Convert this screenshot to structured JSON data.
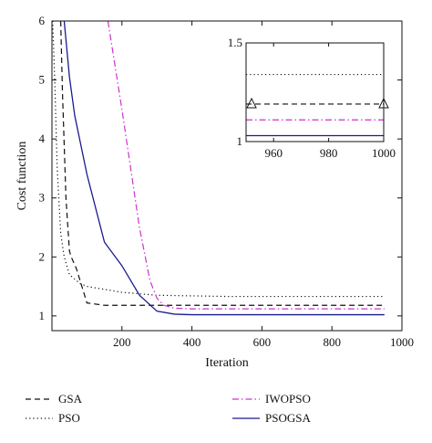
{
  "chart_data": [
    {
      "type": "line",
      "xlabel": "Iteration",
      "ylabel": "Cost function",
      "xlim": [
        0,
        1000
      ],
      "ylim": [
        0.75,
        6
      ],
      "xticks": [
        "200",
        "400",
        "600",
        "800",
        "1000"
      ],
      "yticks": [
        "1",
        "2",
        "3",
        "4",
        "5",
        "6"
      ],
      "grid": false,
      "legend_position": "below",
      "series": [
        {
          "name": "GSA",
          "color": "#111111",
          "style": "dashed",
          "x": [
            25,
            30,
            40,
            50,
            55,
            70,
            100,
            150,
            300,
            500,
            700,
            950
          ],
          "y": [
            6.0,
            4.8,
            3.0,
            2.1,
            2.0,
            1.8,
            1.22,
            1.18,
            1.18,
            1.18,
            1.18,
            1.18
          ]
        },
        {
          "name": "PSO",
          "color": "#111111",
          "style": "dotted",
          "x": [
            2,
            8,
            15,
            25,
            35,
            50,
            80,
            100,
            150,
            200,
            300,
            500,
            950
          ],
          "y": [
            6.0,
            5.0,
            3.5,
            2.4,
            2.0,
            1.7,
            1.55,
            1.5,
            1.45,
            1.4,
            1.35,
            1.33,
            1.33
          ]
        },
        {
          "name": "IWOPSO",
          "color": "#cc33cc",
          "style": "dashdot",
          "x": [
            160,
            200,
            250,
            280,
            300,
            320,
            350,
            400,
            500,
            950
          ],
          "y": [
            6.0,
            4.5,
            2.5,
            1.6,
            1.3,
            1.18,
            1.13,
            1.12,
            1.12,
            1.12
          ]
        },
        {
          "name": "PSOGSA",
          "color": "#1a1a8c",
          "style": "solid",
          "x": [
            35,
            50,
            65,
            100,
            150,
            200,
            250,
            300,
            350,
            400,
            950
          ],
          "y": [
            6.0,
            5.05,
            4.4,
            3.4,
            2.25,
            1.85,
            1.35,
            1.08,
            1.03,
            1.02,
            1.02
          ]
        }
      ]
    },
    {
      "type": "line",
      "xlim": [
        950,
        1000
      ],
      "ylim": [
        1,
        1.5
      ],
      "xticks": [
        "960",
        "980",
        "1000"
      ],
      "yticks": [
        "1",
        "1.5"
      ],
      "grid": false,
      "series": [
        {
          "color": "#111111",
          "style": "dotted",
          "x": [
            950,
            1000
          ],
          "y": [
            1.34,
            1.34
          ]
        },
        {
          "color": "#111111",
          "style": "dashed",
          "x": [
            950,
            1000
          ],
          "y": [
            1.19,
            1.19
          ],
          "markers": [
            952,
            1000
          ]
        },
        {
          "color": "#cc33cc",
          "style": "dashdot",
          "x": [
            950,
            1000
          ],
          "y": [
            1.11,
            1.11
          ]
        },
        {
          "color": "#1a1a8c",
          "style": "solid",
          "x": [
            950,
            1000
          ],
          "y": [
            1.03,
            1.03
          ]
        }
      ]
    }
  ]
}
